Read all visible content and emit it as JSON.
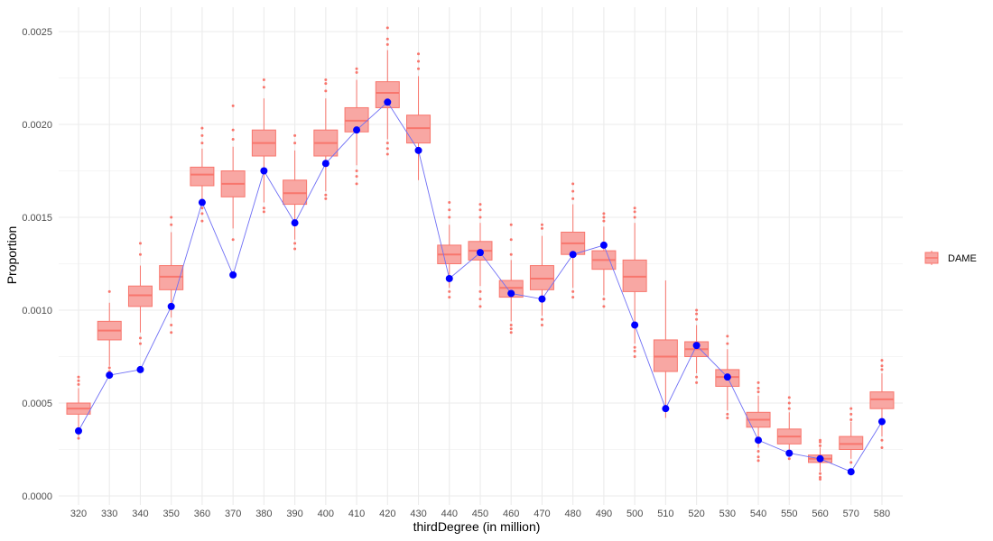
{
  "chart_data": {
    "type": "box",
    "title": "",
    "xlabel": "thirdDegree (in million)",
    "ylabel": "Proportion",
    "ylim": [
      0,
      0.0025
    ],
    "y_ticks": [
      0,
      0.0005,
      0.001,
      0.0015,
      0.002,
      0.0025
    ],
    "y_tick_labels": [
      "0.0000",
      "0.0005",
      "0.0010",
      "0.0015",
      "0.0020",
      "0.0025"
    ],
    "grid": true,
    "legend": {
      "position": "right",
      "entries": [
        "DAME"
      ]
    },
    "colors": {
      "box_fill": "#f8a7a3",
      "box_stroke": "#f8766d",
      "line": "#6f6ff5",
      "point": "#0000ff",
      "grid": "#ebebeb"
    },
    "categories": [
      "320",
      "330",
      "340",
      "350",
      "360",
      "370",
      "380",
      "390",
      "400",
      "410",
      "420",
      "430",
      "440",
      "450",
      "460",
      "470",
      "480",
      "490",
      "500",
      "510",
      "520",
      "530",
      "540",
      "550",
      "560",
      "570",
      "580"
    ],
    "series": [
      {
        "name": "DAME",
        "kind": "boxplot",
        "boxes": [
          {
            "min": 0.00032,
            "q1": 0.00044,
            "median": 0.00047,
            "q3": 0.0005,
            "max": 0.00058,
            "outliers": [
              0.00031,
              0.0006,
              0.00062,
              0.00064
            ]
          },
          {
            "min": 0.0007,
            "q1": 0.00084,
            "median": 0.00089,
            "q3": 0.00094,
            "max": 0.00104,
            "outliers": [
              0.00069,
              0.00067,
              0.0011
            ]
          },
          {
            "min": 0.00088,
            "q1": 0.00102,
            "median": 0.00108,
            "q3": 0.00113,
            "max": 0.00124,
            "outliers": [
              0.00085,
              0.00082,
              0.0013,
              0.00136
            ]
          },
          {
            "min": 0.00096,
            "q1": 0.00111,
            "median": 0.00118,
            "q3": 0.00124,
            "max": 0.00142,
            "outliers": [
              0.00092,
              0.00088,
              0.00146,
              0.0015
            ]
          },
          {
            "min": 0.00158,
            "q1": 0.00167,
            "median": 0.00173,
            "q3": 0.00177,
            "max": 0.00187,
            "outliers": [
              0.00155,
              0.00152,
              0.00148,
              0.0019,
              0.00194,
              0.00198
            ]
          },
          {
            "min": 0.00144,
            "q1": 0.00161,
            "median": 0.00168,
            "q3": 0.00175,
            "max": 0.00188,
            "outliers": [
              0.00138,
              0.00192,
              0.00197,
              0.0021
            ]
          },
          {
            "min": 0.00158,
            "q1": 0.00183,
            "median": 0.0019,
            "q3": 0.00197,
            "max": 0.00214,
            "outliers": [
              0.00155,
              0.00153,
              0.0022,
              0.00224
            ]
          },
          {
            "min": 0.00138,
            "q1": 0.00157,
            "median": 0.00163,
            "q3": 0.0017,
            "max": 0.00186,
            "outliers": [
              0.00136,
              0.00133,
              0.0019,
              0.00194
            ]
          },
          {
            "min": 0.00164,
            "q1": 0.00183,
            "median": 0.0019,
            "q3": 0.00197,
            "max": 0.00214,
            "outliers": [
              0.00162,
              0.0016,
              0.00218,
              0.00222,
              0.00224
            ]
          },
          {
            "min": 0.00178,
            "q1": 0.00196,
            "median": 0.00202,
            "q3": 0.00209,
            "max": 0.00224,
            "outliers": [
              0.00175,
              0.00172,
              0.00168,
              0.00228,
              0.0023
            ]
          },
          {
            "min": 0.00192,
            "q1": 0.00209,
            "median": 0.00217,
            "q3": 0.00223,
            "max": 0.0024,
            "outliers": [
              0.0019,
              0.00187,
              0.00184,
              0.00243,
              0.00246,
              0.00252
            ]
          },
          {
            "min": 0.0017,
            "q1": 0.0019,
            "median": 0.00198,
            "q3": 0.00205,
            "max": 0.00226,
            "outliers": [
              0.0023,
              0.00234,
              0.00238
            ]
          },
          {
            "min": 0.00112,
            "q1": 0.00125,
            "median": 0.0013,
            "q3": 0.00135,
            "max": 0.00146,
            "outliers": [
              0.0011,
              0.00107,
              0.0015,
              0.00154,
              0.00158
            ]
          },
          {
            "min": 0.00113,
            "q1": 0.00127,
            "median": 0.00132,
            "q3": 0.00137,
            "max": 0.00147,
            "outliers": [
              0.0011,
              0.00106,
              0.00102,
              0.0015,
              0.00154,
              0.00157
            ]
          },
          {
            "min": 0.00094,
            "q1": 0.00107,
            "median": 0.00112,
            "q3": 0.00116,
            "max": 0.00127,
            "outliers": [
              0.00092,
              0.0009,
              0.00088,
              0.0013,
              0.00138,
              0.00146
            ]
          },
          {
            "min": 0.00097,
            "q1": 0.00111,
            "median": 0.00117,
            "q3": 0.00124,
            "max": 0.0014,
            "outliers": [
              0.00095,
              0.00092,
              0.00144,
              0.00146
            ]
          },
          {
            "min": 0.00112,
            "q1": 0.0013,
            "median": 0.00136,
            "q3": 0.00142,
            "max": 0.00157,
            "outliers": [
              0.0011,
              0.00107,
              0.0016,
              0.00164,
              0.00168
            ]
          },
          {
            "min": 0.00108,
            "q1": 0.00122,
            "median": 0.00127,
            "q3": 0.00132,
            "max": 0.00145,
            "outliers": [
              0.00106,
              0.00102,
              0.00148,
              0.0015,
              0.00152
            ]
          },
          {
            "min": 0.00082,
            "q1": 0.0011,
            "median": 0.00118,
            "q3": 0.00127,
            "max": 0.00147,
            "outliers": [
              0.0008,
              0.00078,
              0.00075,
              0.0015,
              0.00153,
              0.00155
            ]
          },
          {
            "min": 0.00042,
            "q1": 0.00067,
            "median": 0.00075,
            "q3": 0.00084,
            "max": 0.00116,
            "outliers": []
          },
          {
            "min": 0.00066,
            "q1": 0.00075,
            "median": 0.00079,
            "q3": 0.00083,
            "max": 0.00092,
            "outliers": [
              0.00064,
              0.00061,
              0.00095,
              0.00098,
              0.001
            ]
          },
          {
            "min": 0.00046,
            "q1": 0.00059,
            "median": 0.00064,
            "q3": 0.00068,
            "max": 0.00079,
            "outliers": [
              0.00044,
              0.00042,
              0.00082,
              0.00086
            ]
          },
          {
            "min": 0.00026,
            "q1": 0.00037,
            "median": 0.00041,
            "q3": 0.00045,
            "max": 0.00054,
            "outliers": [
              0.00024,
              0.00021,
              0.00019,
              0.00056,
              0.00058,
              0.00061
            ]
          },
          {
            "min": 0.00022,
            "q1": 0.00028,
            "median": 0.00032,
            "q3": 0.00036,
            "max": 0.00045,
            "outliers": [
              0.0002,
              0.00047,
              0.0005,
              0.00053
            ]
          },
          {
            "min": 0.00013,
            "q1": 0.00018,
            "median": 0.0002,
            "q3": 0.00022,
            "max": 0.00026,
            "outliers": [
              0.00012,
              0.0001,
              9e-05,
              0.00027,
              0.00029,
              0.0003
            ]
          },
          {
            "min": 0.0002,
            "q1": 0.00025,
            "median": 0.00028,
            "q3": 0.00032,
            "max": 0.0004,
            "outliers": [
              0.00018,
              0.00041,
              0.00044,
              0.00047
            ]
          },
          {
            "min": 0.00032,
            "q1": 0.00047,
            "median": 0.00052,
            "q3": 0.00056,
            "max": 0.00066,
            "outliers": [
              0.0003,
              0.00026,
              0.00068,
              0.0007,
              0.00073
            ]
          }
        ]
      },
      {
        "name": "",
        "kind": "line_points",
        "values": [
          0.00035,
          0.00065,
          0.00068,
          0.00102,
          0.00158,
          0.00119,
          0.00175,
          0.00147,
          0.00179,
          0.00197,
          0.00212,
          0.00186,
          0.00117,
          0.00131,
          0.00109,
          0.00106,
          0.0013,
          0.00135,
          0.00092,
          0.00047,
          0.00081,
          0.00064,
          0.0003,
          0.00023,
          0.0002,
          0.00013,
          0.0004
        ]
      }
    ]
  }
}
